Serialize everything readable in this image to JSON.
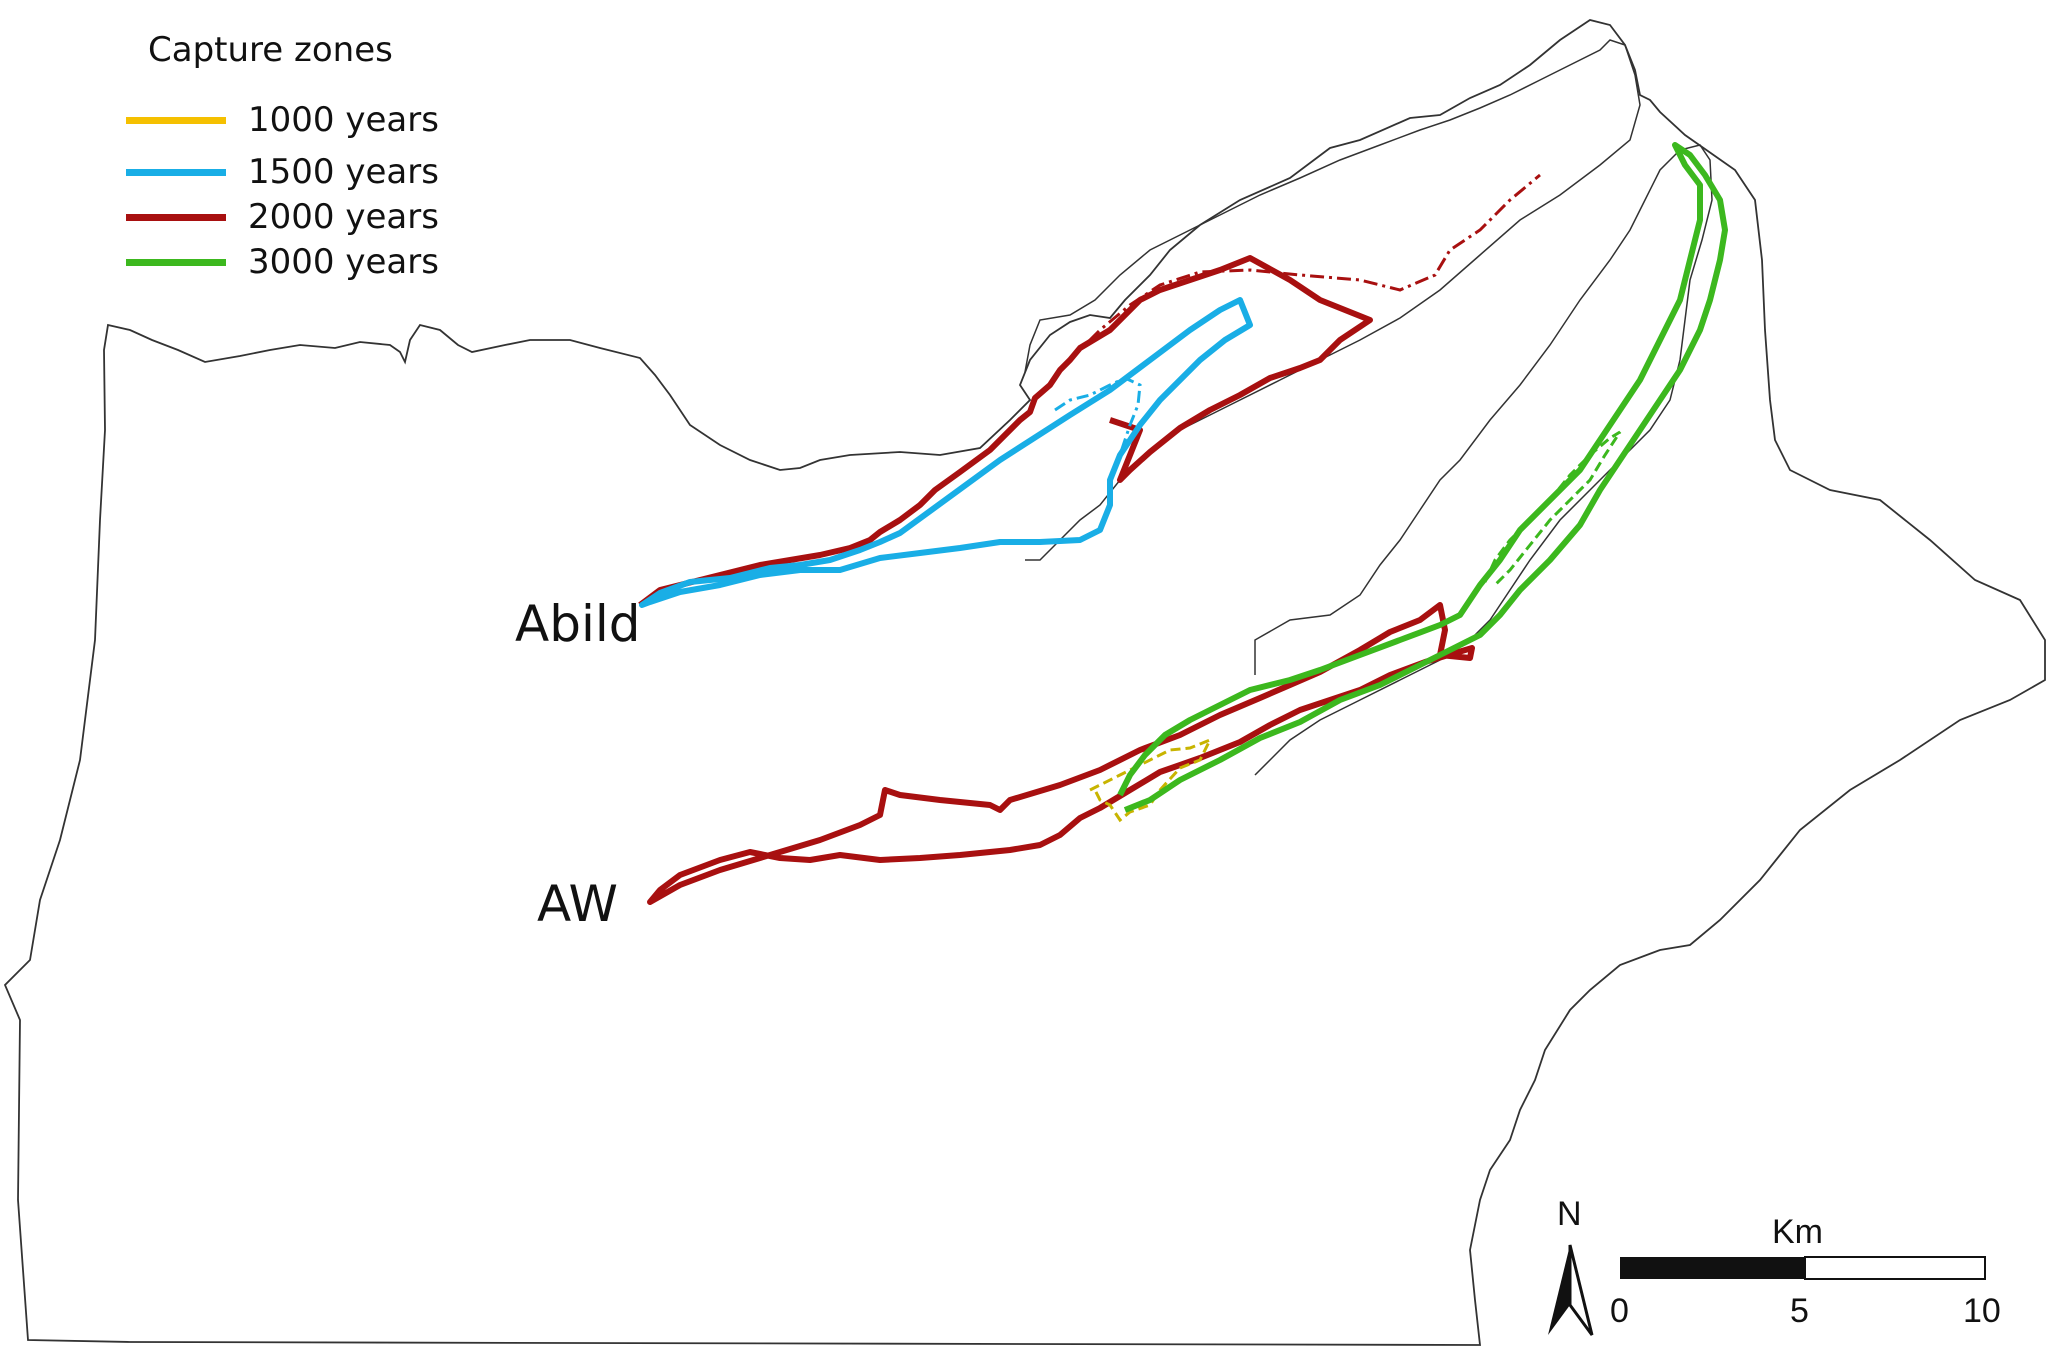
{
  "legend": {
    "title": "Capture zones",
    "items": [
      {
        "label": "1000 years",
        "color": "#f5c000"
      },
      {
        "label": "1500 years",
        "color": "#19aee6"
      },
      {
        "label": "2000 years",
        "color": "#a81010"
      },
      {
        "label": "3000 years",
        "color": "#3cb81e"
      }
    ]
  },
  "places": {
    "abild": "Abild",
    "aw": "AW"
  },
  "north_arrow": {
    "label": "N"
  },
  "scale_bar": {
    "unit": "Km",
    "ticks": [
      "0",
      "5",
      "10"
    ]
  },
  "colors": {
    "boundary": "#333333",
    "dashed_1000": "#c8b400"
  }
}
